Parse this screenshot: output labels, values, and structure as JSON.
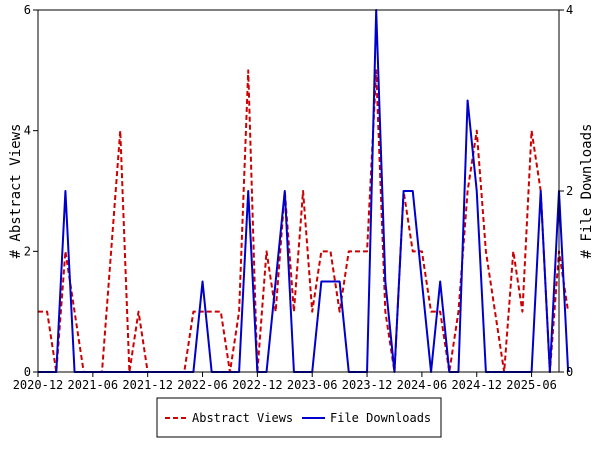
{
  "chart_data": {
    "type": "line",
    "x_tick_labels": [
      "2020-12",
      "2021-06",
      "2021-12",
      "2022-06",
      "2022-12",
      "2023-06",
      "2023-12",
      "2024-06",
      "2024-12",
      "2025-06"
    ],
    "x_tick_dates": [
      "2020-12",
      "2021-06",
      "2021-12",
      "2022-06",
      "2022-12",
      "2023-06",
      "2023-12",
      "2024-06",
      "2024-12",
      "2025-06"
    ],
    "xlim": [
      "2020-12",
      "2025-09"
    ],
    "left_axis": {
      "label": "# Abstract Views",
      "ylim": [
        0,
        6
      ],
      "ticks": [
        0,
        2,
        4,
        6
      ]
    },
    "right_axis": {
      "label": "# File Downloads",
      "ylim": [
        0,
        4
      ],
      "ticks": [
        0,
        2,
        4
      ]
    },
    "legend": {
      "placement": "bottom-center"
    },
    "grid": false,
    "series": [
      {
        "name": "Abstract Views",
        "axis": "left",
        "color": "#cc0000",
        "style": "dashed",
        "points": [
          [
            "2020-12",
            1
          ],
          [
            "2021-01",
            1
          ],
          [
            "2021-02",
            0
          ],
          [
            "2021-03",
            2
          ],
          [
            "2021-04",
            1
          ],
          [
            "2021-05",
            0
          ],
          [
            "2021-06",
            0
          ],
          [
            "2021-07",
            0
          ],
          [
            "2021-08",
            2
          ],
          [
            "2021-09",
            4
          ],
          [
            "2021-10",
            0
          ],
          [
            "2021-11",
            1
          ],
          [
            "2021-12",
            0
          ],
          [
            "2022-01",
            0
          ],
          [
            "2022-02",
            0
          ],
          [
            "2022-03",
            0
          ],
          [
            "2022-04",
            0
          ],
          [
            "2022-05",
            1
          ],
          [
            "2022-06",
            1
          ],
          [
            "2022-07",
            1
          ],
          [
            "2022-08",
            1
          ],
          [
            "2022-09",
            0
          ],
          [
            "2022-10",
            1
          ],
          [
            "2022-11",
            5
          ],
          [
            "2022-12",
            0
          ],
          [
            "2023-01",
            2
          ],
          [
            "2023-02",
            1
          ],
          [
            "2023-03",
            3
          ],
          [
            "2023-04",
            1
          ],
          [
            "2023-05",
            3
          ],
          [
            "2023-06",
            1
          ],
          [
            "2023-07",
            2
          ],
          [
            "2023-08",
            2
          ],
          [
            "2023-09",
            1
          ],
          [
            "2023-10",
            2
          ],
          [
            "2023-11",
            2
          ],
          [
            "2023-12",
            2
          ],
          [
            "2024-01",
            5
          ],
          [
            "2024-02",
            1
          ],
          [
            "2024-03",
            0
          ],
          [
            "2024-04",
            3
          ],
          [
            "2024-05",
            2
          ],
          [
            "2024-06",
            2
          ],
          [
            "2024-07",
            1
          ],
          [
            "2024-08",
            1
          ],
          [
            "2024-09",
            0
          ],
          [
            "2024-10",
            1
          ],
          [
            "2024-11",
            3
          ],
          [
            "2024-12",
            4
          ],
          [
            "2025-01",
            2
          ],
          [
            "2025-02",
            1
          ],
          [
            "2025-03",
            0
          ],
          [
            "2025-04",
            2
          ],
          [
            "2025-05",
            1
          ],
          [
            "2025-06",
            4
          ],
          [
            "2025-07",
            3
          ],
          [
            "2025-08",
            0
          ],
          [
            "2025-09",
            2
          ],
          [
            "2025-10",
            1
          ]
        ]
      },
      {
        "name": "File Downloads",
        "axis": "right",
        "color": "#0000cc",
        "style": "solid",
        "points": [
          [
            "2020-12",
            0
          ],
          [
            "2021-01",
            0
          ],
          [
            "2021-02",
            0
          ],
          [
            "2021-03",
            2
          ],
          [
            "2021-04",
            0
          ],
          [
            "2021-05",
            0
          ],
          [
            "2021-06",
            0
          ],
          [
            "2021-07",
            0
          ],
          [
            "2021-08",
            0
          ],
          [
            "2021-09",
            0
          ],
          [
            "2021-10",
            0
          ],
          [
            "2021-11",
            0
          ],
          [
            "2021-12",
            0
          ],
          [
            "2022-01",
            0
          ],
          [
            "2022-02",
            0
          ],
          [
            "2022-03",
            0
          ],
          [
            "2022-04",
            0
          ],
          [
            "2022-05",
            0
          ],
          [
            "2022-06",
            1
          ],
          [
            "2022-07",
            0
          ],
          [
            "2022-08",
            0
          ],
          [
            "2022-09",
            0
          ],
          [
            "2022-10",
            0
          ],
          [
            "2022-11",
            2
          ],
          [
            "2022-12",
            0
          ],
          [
            "2023-01",
            0
          ],
          [
            "2023-02",
            1
          ],
          [
            "2023-03",
            2
          ],
          [
            "2023-04",
            0
          ],
          [
            "2023-05",
            0
          ],
          [
            "2023-06",
            0
          ],
          [
            "2023-07",
            1
          ],
          [
            "2023-08",
            1
          ],
          [
            "2023-09",
            1
          ],
          [
            "2023-10",
            0
          ],
          [
            "2023-11",
            0
          ],
          [
            "2023-12",
            0
          ],
          [
            "2024-01",
            4
          ],
          [
            "2024-02",
            1
          ],
          [
            "2024-03",
            0
          ],
          [
            "2024-04",
            2
          ],
          [
            "2024-05",
            2
          ],
          [
            "2024-06",
            1
          ],
          [
            "2024-07",
            0
          ],
          [
            "2024-08",
            1
          ],
          [
            "2024-09",
            0
          ],
          [
            "2024-10",
            0
          ],
          [
            "2024-11",
            3
          ],
          [
            "2024-12",
            2
          ],
          [
            "2025-01",
            0
          ],
          [
            "2025-02",
            0
          ],
          [
            "2025-03",
            0
          ],
          [
            "2025-04",
            0
          ],
          [
            "2025-05",
            0
          ],
          [
            "2025-06",
            0
          ],
          [
            "2025-07",
            2
          ],
          [
            "2025-08",
            0
          ],
          [
            "2025-09",
            2
          ],
          [
            "2025-10",
            0
          ]
        ]
      }
    ]
  }
}
